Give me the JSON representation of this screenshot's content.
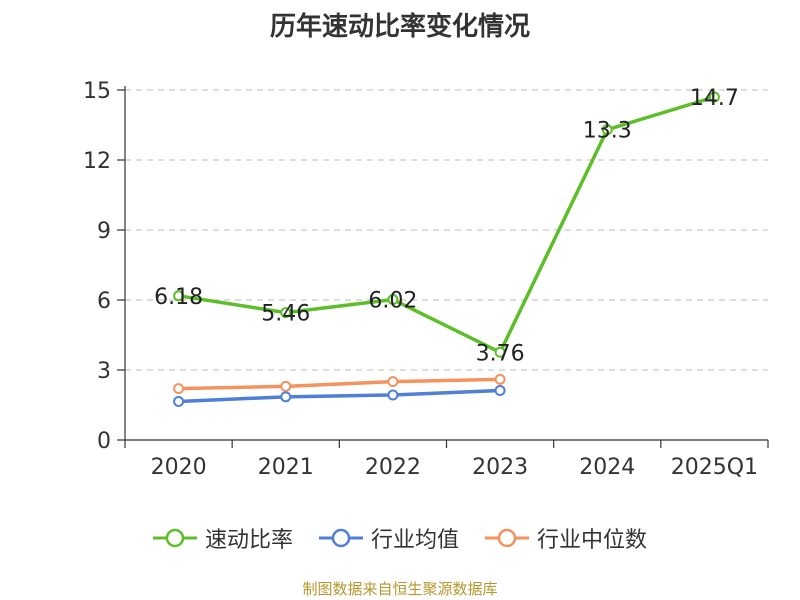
{
  "title": "历年速动比率变化情况",
  "source_note": "制图数据来自恒生聚源数据库",
  "colors": {
    "quick_ratio": "#5cbf2a",
    "industry_avg": "#4f7fd8",
    "industry_median": "#f5925e"
  },
  "chart_data": {
    "type": "line",
    "title": "历年速动比率变化情况",
    "categories": [
      "2020",
      "2021",
      "2022",
      "2023",
      "2024",
      "2025Q1"
    ],
    "ylim": [
      0,
      15
    ],
    "yticks": [
      0,
      3,
      6,
      9,
      12,
      15
    ],
    "grid": true,
    "legend_position": "bottom",
    "series": [
      {
        "name": "速动比率",
        "values": [
          6.18,
          5.46,
          6.02,
          3.76,
          13.3,
          14.7
        ],
        "labels": [
          "6.18",
          "5.46",
          "6.02",
          "3.76",
          "13.3",
          "14.7"
        ]
      },
      {
        "name": "行业均值",
        "values": [
          1.65,
          1.85,
          1.93,
          2.12,
          null,
          null
        ]
      },
      {
        "name": "行业中位数",
        "values": [
          2.2,
          2.3,
          2.5,
          2.6,
          null,
          null
        ]
      }
    ]
  }
}
